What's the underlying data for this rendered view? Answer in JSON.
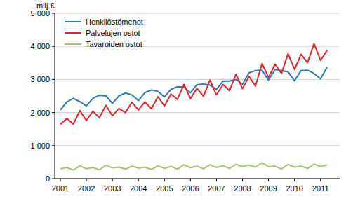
{
  "chart_data": {
    "type": "line",
    "ylabel": "milj.€",
    "categories": [
      "2001",
      null,
      null,
      null,
      "2002",
      null,
      null,
      null,
      "2003",
      null,
      null,
      null,
      "2004",
      null,
      null,
      null,
      "2005",
      null,
      null,
      null,
      "2006",
      null,
      null,
      null,
      "2007",
      null,
      null,
      null,
      "2008",
      null,
      null,
      null,
      "2009",
      null,
      null,
      null,
      "2010",
      null,
      null,
      null,
      "2011",
      null
    ],
    "series": [
      {
        "name": "Henkilöstömenot",
        "color": "#2b7bb9",
        "values": [
          2080,
          2320,
          2430,
          2330,
          2200,
          2430,
          2520,
          2500,
          2280,
          2500,
          2590,
          2530,
          2360,
          2600,
          2680,
          2640,
          2470,
          2700,
          2780,
          2770,
          2600,
          2840,
          2860,
          2830,
          2700,
          2950,
          2950,
          3000,
          2850,
          3200,
          3270,
          3280,
          2980,
          3300,
          3270,
          3230,
          2960,
          3270,
          3280,
          3180,
          3020,
          3370
        ]
      },
      {
        "name": "Palvelujen ostot",
        "color": "#e3262b",
        "values": [
          1640,
          1820,
          1650,
          2060,
          1760,
          2040,
          1840,
          2220,
          1900,
          2120,
          2000,
          2310,
          2080,
          2320,
          2120,
          2480,
          2200,
          2560,
          2400,
          2850,
          2420,
          2730,
          2490,
          2980,
          2530,
          2850,
          2660,
          3160,
          2720,
          3090,
          2800,
          3480,
          3060,
          3460,
          3180,
          3780,
          3300,
          3760,
          3510,
          4080,
          3580,
          3880
        ]
      },
      {
        "name": "Tavaroiden ostot",
        "color": "#a5c76b",
        "values": [
          300,
          340,
          260,
          390,
          300,
          340,
          270,
          400,
          330,
          350,
          290,
          380,
          320,
          350,
          280,
          390,
          310,
          370,
          290,
          420,
          330,
          380,
          300,
          420,
          340,
          390,
          310,
          430,
          370,
          410,
          350,
          480,
          360,
          380,
          290,
          430,
          350,
          380,
          310,
          440,
          370,
          420
        ]
      }
    ],
    "ylim": [
      0,
      5000
    ],
    "yticks": [
      0,
      {
        "value": 1000,
        "label": "1 000"
      },
      {
        "value": 2000,
        "label": "2 000"
      },
      {
        "value": 3000,
        "label": "3 000"
      },
      {
        "value": 4000,
        "label": "4 000"
      },
      {
        "value": 5000,
        "label": "5 000"
      }
    ],
    "grid": true,
    "legend": "top-left"
  }
}
